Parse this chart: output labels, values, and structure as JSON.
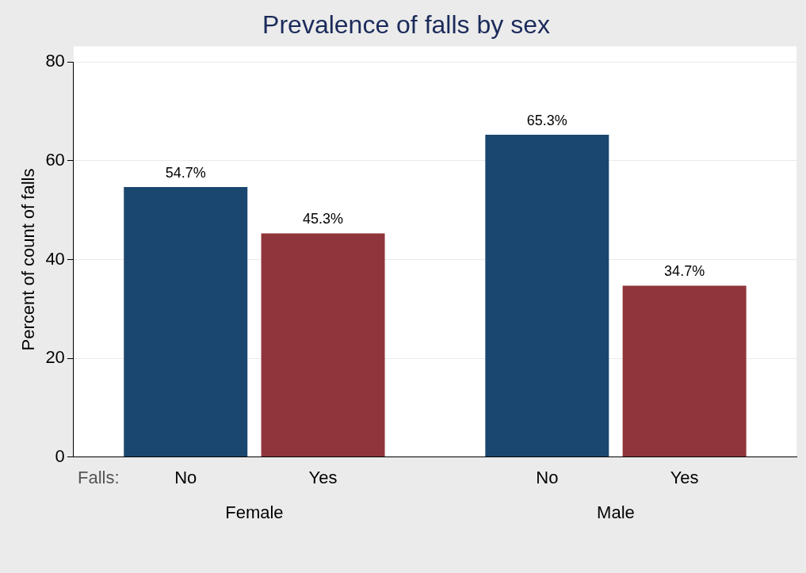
{
  "chart_data": {
    "type": "bar",
    "title": "Prevalence of falls by sex",
    "ylabel": "Percent of count of falls",
    "legend_title": "Falls:",
    "categories": [
      "Female",
      "Male"
    ],
    "series": [
      {
        "name": "No",
        "color": "#1a476f",
        "values": [
          54.7,
          65.3
        ],
        "value_labels": [
          "54.7%",
          "65.3%"
        ]
      },
      {
        "name": "Yes",
        "color": "#90353b",
        "values": [
          45.3,
          34.7
        ],
        "value_labels": [
          "45.3%",
          "34.7%"
        ]
      }
    ],
    "ylim": [
      0,
      80
    ],
    "yticks": [
      0,
      20,
      40,
      60,
      80
    ],
    "grid": "y"
  }
}
